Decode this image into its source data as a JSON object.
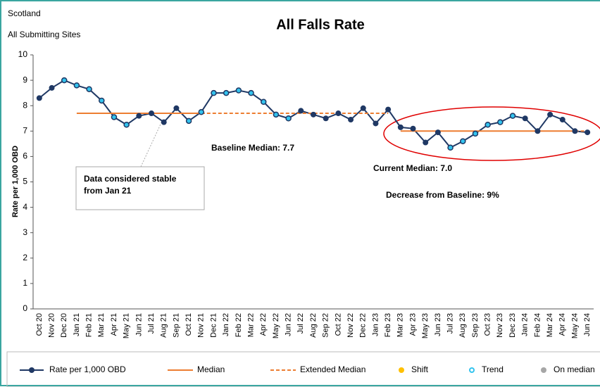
{
  "chart_data": {
    "type": "line",
    "title": "All Falls Rate",
    "subtitle": [
      "Scotland",
      "All Submitting Sites"
    ],
    "y_label": "Rate per 1,000 OBD",
    "annotations": {
      "stable": [
        "Data considered stable",
        "from Jan 21"
      ],
      "baseline": "Baseline Median: 7.7",
      "current": "Current Median: 7.0",
      "decrease": "Decrease from Baseline: 9%"
    },
    "categories": [
      "Oct 20",
      "Nov 20",
      "Dec 20",
      "Jan 21",
      "Feb 21",
      "Mar 21",
      "Apr 21",
      "May 21",
      "Jun 21",
      "Jul 21",
      "Aug 21",
      "Sep 21",
      "Oct 21",
      "Nov 21",
      "Dec 21",
      "Jan 22",
      "Feb 22",
      "Mar 22",
      "Apr 22",
      "May 22",
      "Jun 22",
      "Jul 22",
      "Aug 22",
      "Sep 22",
      "Oct 22",
      "Nov 22",
      "Dec 22",
      "Jan 23",
      "Feb 23",
      "Mar 23",
      "Apr 23",
      "May 23",
      "Jun 23",
      "Jul 23",
      "Aug 23",
      "Sep 23",
      "Oct 23",
      "Nov 23",
      "Dec 23",
      "Jan 24",
      "Feb 24",
      "Mar 24",
      "Apr 24",
      "May 24",
      "Jun 24"
    ],
    "series": [
      {
        "name": "Rate per 1,000 OBD",
        "color": "#1f3864",
        "style": "line-marker",
        "values": [
          8.3,
          8.7,
          9.0,
          8.8,
          8.65,
          8.2,
          7.55,
          7.25,
          7.6,
          7.7,
          7.35,
          7.9,
          7.4,
          7.75,
          8.5,
          8.5,
          8.6,
          8.5,
          8.15,
          7.65,
          7.5,
          7.8,
          7.65,
          7.5,
          7.7,
          7.45,
          7.9,
          7.3,
          7.85,
          7.15,
          7.1,
          6.55,
          6.95,
          6.35,
          6.6,
          6.9,
          7.25,
          7.35,
          7.6,
          7.5,
          7.0,
          7.65,
          7.45,
          7.0,
          6.95
        ]
      },
      {
        "name": "Median",
        "color": "#ed7d31",
        "style": "line",
        "values": [
          null,
          null,
          null,
          7.7,
          7.7,
          7.7,
          7.7,
          7.7,
          7.7,
          7.7,
          7.7,
          7.7,
          7.7,
          7.7,
          null,
          null,
          null,
          null,
          null,
          null,
          null,
          null,
          null,
          null,
          null,
          null,
          null,
          null,
          null,
          7.0,
          7.0,
          7.0,
          7.0,
          7.0,
          7.0,
          7.0,
          7.0,
          7.0,
          7.0,
          7.0,
          7.0,
          7.0,
          7.0,
          7.0,
          null
        ]
      },
      {
        "name": "Extended Median",
        "color": "#ed7d31",
        "style": "dashed",
        "values": [
          null,
          null,
          null,
          null,
          null,
          null,
          null,
          null,
          null,
          null,
          null,
          null,
          null,
          7.7,
          7.7,
          7.7,
          7.7,
          7.7,
          7.7,
          7.7,
          7.7,
          7.7,
          7.7,
          7.7,
          7.7,
          7.7,
          7.7,
          7.7,
          7.7,
          null,
          null,
          null,
          null,
          null,
          null,
          null,
          null,
          null,
          null,
          null,
          null,
          null,
          null,
          7.0,
          7.0
        ]
      },
      {
        "name": "Shift",
        "color": "#ffc000",
        "style": "dot",
        "values": [
          null,
          null,
          null,
          null,
          null,
          null,
          null,
          null,
          null,
          null,
          null,
          null,
          null,
          null,
          null,
          null,
          null,
          null,
          null,
          null,
          null,
          null,
          null,
          null,
          null,
          null,
          null,
          null,
          null,
          null,
          null,
          null,
          null,
          null,
          null,
          null,
          null,
          null,
          null,
          null,
          null,
          null,
          null,
          null,
          null
        ]
      },
      {
        "name": "Trend",
        "color": "#33c3ee",
        "style": "ring",
        "values": [
          null,
          null,
          9.0,
          8.8,
          8.65,
          8.2,
          7.55,
          7.25,
          null,
          null,
          null,
          null,
          7.4,
          7.75,
          8.5,
          8.5,
          8.6,
          8.5,
          8.15,
          7.65,
          7.5,
          null,
          null,
          null,
          null,
          null,
          null,
          null,
          null,
          null,
          null,
          null,
          null,
          6.35,
          6.6,
          6.9,
          7.25,
          7.35,
          7.6,
          null,
          null,
          null,
          null,
          null,
          null
        ]
      },
      {
        "name": "On median",
        "color": "#a6a6a6",
        "style": "dot",
        "values": [
          null,
          null,
          null,
          null,
          null,
          null,
          null,
          null,
          null,
          null,
          null,
          null,
          null,
          null,
          null,
          null,
          null,
          null,
          null,
          null,
          null,
          null,
          null,
          null,
          null,
          null,
          null,
          null,
          null,
          null,
          null,
          null,
          null,
          null,
          null,
          null,
          null,
          null,
          null,
          null,
          null,
          null,
          null,
          null,
          null
        ]
      }
    ],
    "ylim": [
      0,
      10
    ],
    "yticks": [
      0,
      1,
      2,
      3,
      4,
      5,
      6,
      7,
      8,
      9,
      10
    ],
    "grid": false
  }
}
